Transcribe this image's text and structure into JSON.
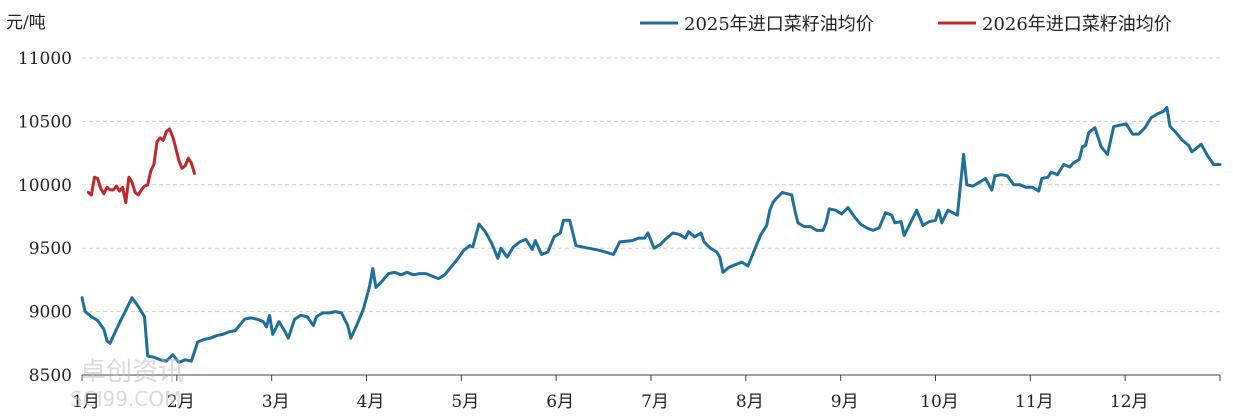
{
  "chart_data": {
    "type": "line",
    "ylabel": "元/吨",
    "ylim": [
      8500,
      11000
    ],
    "yticks": [
      8500,
      9000,
      9500,
      10000,
      10500,
      11000
    ],
    "grid": true,
    "legend_position": "top-right",
    "x_categories": [
      "1月",
      "2月",
      "3月",
      "4月",
      "5月",
      "6月",
      "7月",
      "8月",
      "9月",
      "10月",
      "11月",
      "12月"
    ],
    "x_unit": "day of year",
    "x_range": [
      1,
      365
    ],
    "series": [
      {
        "name": "2025年进口菜籽油均价",
        "color": "#1f6f9c",
        "points": [
          [
            1,
            9110
          ],
          [
            2,
            9000
          ],
          [
            4,
            8960
          ],
          [
            6,
            8930
          ],
          [
            8,
            8860
          ],
          [
            9,
            8770
          ],
          [
            10,
            8750
          ],
          [
            12,
            8860
          ],
          [
            14,
            8960
          ],
          [
            15,
            9010
          ],
          [
            17,
            9110
          ],
          [
            19,
            9040
          ],
          [
            21,
            8960
          ],
          [
            22,
            8650
          ],
          [
            24,
            8640
          ],
          [
            26,
            8620
          ],
          [
            28,
            8610
          ],
          [
            30,
            8660
          ],
          [
            32,
            8600
          ],
          [
            34,
            8620
          ],
          [
            36,
            8610
          ],
          [
            38,
            8760
          ],
          [
            40,
            8780
          ],
          [
            42,
            8790
          ],
          [
            44,
            8810
          ],
          [
            46,
            8820
          ],
          [
            48,
            8840
          ],
          [
            50,
            8850
          ],
          [
            53,
            8940
          ],
          [
            55,
            8950
          ],
          [
            57,
            8940
          ],
          [
            59,
            8920
          ],
          [
            60,
            8880
          ],
          [
            61,
            8970
          ],
          [
            62,
            8820
          ],
          [
            64,
            8920
          ],
          [
            66,
            8840
          ],
          [
            67,
            8790
          ],
          [
            69,
            8940
          ],
          [
            71,
            8970
          ],
          [
            73,
            8960
          ],
          [
            75,
            8890
          ],
          [
            76,
            8960
          ],
          [
            78,
            8990
          ],
          [
            80,
            8990
          ],
          [
            82,
            9000
          ],
          [
            84,
            8990
          ],
          [
            86,
            8890
          ],
          [
            87,
            8790
          ],
          [
            89,
            8900
          ],
          [
            91,
            9020
          ],
          [
            93,
            9200
          ],
          [
            94,
            9340
          ],
          [
            95,
            9190
          ],
          [
            97,
            9240
          ],
          [
            99,
            9300
          ],
          [
            101,
            9310
          ],
          [
            103,
            9290
          ],
          [
            105,
            9310
          ],
          [
            107,
            9290
          ],
          [
            109,
            9300
          ],
          [
            111,
            9300
          ],
          [
            113,
            9280
          ],
          [
            115,
            9260
          ],
          [
            117,
            9290
          ],
          [
            119,
            9350
          ],
          [
            121,
            9410
          ],
          [
            123,
            9480
          ],
          [
            125,
            9520
          ],
          [
            126,
            9510
          ],
          [
            128,
            9690
          ],
          [
            130,
            9630
          ],
          [
            132,
            9540
          ],
          [
            134,
            9420
          ],
          [
            135,
            9500
          ],
          [
            137,
            9430
          ],
          [
            139,
            9510
          ],
          [
            141,
            9550
          ],
          [
            143,
            9570
          ],
          [
            145,
            9490
          ],
          [
            146,
            9560
          ],
          [
            148,
            9450
          ],
          [
            150,
            9470
          ],
          [
            152,
            9590
          ],
          [
            154,
            9620
          ],
          [
            155,
            9720
          ],
          [
            157,
            9720
          ],
          [
            159,
            9520
          ],
          [
            163,
            9500
          ],
          [
            167,
            9480
          ],
          [
            171,
            9450
          ],
          [
            173,
            9550
          ],
          [
            177,
            9560
          ],
          [
            179,
            9580
          ],
          [
            181,
            9580
          ],
          [
            182,
            9620
          ],
          [
            184,
            9500
          ],
          [
            186,
            9530
          ],
          [
            188,
            9580
          ],
          [
            190,
            9620
          ],
          [
            192,
            9610
          ],
          [
            194,
            9580
          ],
          [
            195,
            9630
          ],
          [
            197,
            9590
          ],
          [
            199,
            9620
          ],
          [
            200,
            9550
          ],
          [
            202,
            9500
          ],
          [
            204,
            9470
          ],
          [
            205,
            9430
          ],
          [
            206,
            9310
          ],
          [
            208,
            9350
          ],
          [
            212,
            9390
          ],
          [
            214,
            9360
          ],
          [
            216,
            9480
          ],
          [
            218,
            9600
          ],
          [
            220,
            9680
          ],
          [
            221,
            9800
          ],
          [
            222,
            9860
          ],
          [
            223,
            9890
          ],
          [
            225,
            9940
          ],
          [
            228,
            9920
          ],
          [
            229,
            9800
          ],
          [
            230,
            9700
          ],
          [
            232,
            9670
          ],
          [
            234,
            9670
          ],
          [
            236,
            9640
          ],
          [
            238,
            9640
          ],
          [
            239,
            9700
          ],
          [
            240,
            9810
          ],
          [
            242,
            9800
          ],
          [
            244,
            9770
          ],
          [
            246,
            9820
          ],
          [
            248,
            9750
          ],
          [
            250,
            9690
          ],
          [
            252,
            9660
          ],
          [
            254,
            9640
          ],
          [
            256,
            9660
          ],
          [
            258,
            9780
          ],
          [
            260,
            9760
          ],
          [
            261,
            9700
          ],
          [
            263,
            9710
          ],
          [
            264,
            9600
          ],
          [
            266,
            9700
          ],
          [
            268,
            9800
          ],
          [
            270,
            9680
          ],
          [
            272,
            9710
          ],
          [
            274,
            9720
          ],
          [
            275,
            9800
          ],
          [
            276,
            9700
          ],
          [
            278,
            9800
          ],
          [
            281,
            9760
          ],
          [
            283,
            10240
          ],
          [
            284,
            10000
          ],
          [
            286,
            9990
          ],
          [
            288,
            10020
          ],
          [
            290,
            10050
          ],
          [
            292,
            9960
          ],
          [
            293,
            10070
          ],
          [
            295,
            10080
          ],
          [
            297,
            10070
          ],
          [
            299,
            10000
          ],
          [
            301,
            10000
          ],
          [
            303,
            9980
          ],
          [
            305,
            9980
          ],
          [
            307,
            9950
          ],
          [
            308,
            10050
          ],
          [
            310,
            10060
          ],
          [
            311,
            10100
          ],
          [
            313,
            10080
          ],
          [
            315,
            10160
          ],
          [
            317,
            10140
          ],
          [
            318,
            10170
          ],
          [
            320,
            10200
          ],
          [
            321,
            10300
          ],
          [
            322,
            10310
          ],
          [
            323,
            10410
          ],
          [
            325,
            10450
          ],
          [
            327,
            10300
          ],
          [
            329,
            10240
          ],
          [
            331,
            10460
          ],
          [
            333,
            10470
          ],
          [
            335,
            10480
          ],
          [
            337,
            10400
          ],
          [
            339,
            10400
          ],
          [
            341,
            10450
          ],
          [
            343,
            10530
          ],
          [
            345,
            10560
          ],
          [
            347,
            10580
          ],
          [
            348,
            10610
          ],
          [
            349,
            10460
          ],
          [
            351,
            10410
          ],
          [
            353,
            10350
          ],
          [
            355,
            10310
          ],
          [
            356,
            10260
          ],
          [
            358,
            10300
          ],
          [
            359,
            10320
          ],
          [
            361,
            10230
          ],
          [
            363,
            10160
          ],
          [
            365,
            10160
          ]
        ]
      },
      {
        "name": "2026年进口菜籽油均价",
        "color": "#c0282c",
        "points": [
          [
            3,
            9940
          ],
          [
            4,
            9920
          ],
          [
            5,
            10060
          ],
          [
            6,
            10050
          ],
          [
            7,
            9970
          ],
          [
            8,
            9930
          ],
          [
            9,
            9980
          ],
          [
            10,
            9960
          ],
          [
            11,
            9960
          ],
          [
            12,
            9990
          ],
          [
            13,
            9950
          ],
          [
            14,
            9980
          ],
          [
            15,
            9860
          ],
          [
            16,
            10060
          ],
          [
            17,
            10020
          ],
          [
            18,
            9940
          ],
          [
            19,
            9920
          ],
          [
            20,
            9960
          ],
          [
            21,
            9990
          ],
          [
            22,
            10000
          ],
          [
            23,
            10110
          ],
          [
            24,
            10160
          ],
          [
            25,
            10340
          ],
          [
            26,
            10370
          ],
          [
            27,
            10350
          ],
          [
            28,
            10420
          ],
          [
            29,
            10440
          ],
          [
            30,
            10380
          ],
          [
            31,
            10290
          ],
          [
            32,
            10190
          ],
          [
            33,
            10130
          ],
          [
            34,
            10150
          ],
          [
            35,
            10210
          ],
          [
            36,
            10170
          ],
          [
            37,
            10090
          ]
        ]
      }
    ]
  },
  "watermark": {
    "cn": "卓创资讯",
    "en": "SCI99.COM"
  }
}
